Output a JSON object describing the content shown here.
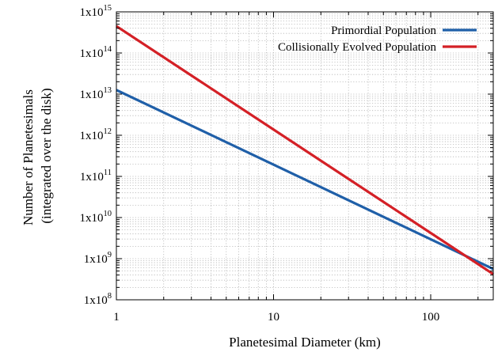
{
  "chart_data": {
    "type": "line",
    "xlabel": "Planetesimal Diameter (km)",
    "ylabel_lines": [
      "Number of Planetesimals",
      "(integrated over the disk)"
    ],
    "x_scale": "log",
    "y_scale": "log",
    "xlim": [
      1,
      250
    ],
    "ylim": [
      100000000,
      1000000000000000
    ],
    "x_ticks": [
      {
        "value": 1,
        "label": "1"
      },
      {
        "value": 10,
        "label": "10"
      },
      {
        "value": 100,
        "label": "100"
      }
    ],
    "y_ticks": [
      {
        "value": 100000000,
        "base": "1x10",
        "exp": "8"
      },
      {
        "value": 1000000000,
        "base": "1x10",
        "exp": "9"
      },
      {
        "value": 10000000000,
        "base": "1x10",
        "exp": "10"
      },
      {
        "value": 100000000000,
        "base": "1x10",
        "exp": "11"
      },
      {
        "value": 1000000000000,
        "base": "1x10",
        "exp": "12"
      },
      {
        "value": 10000000000000,
        "base": "1x10",
        "exp": "13"
      },
      {
        "value": 100000000000000,
        "base": "1x10",
        "exp": "14"
      },
      {
        "value": 1000000000000000,
        "base": "1x10",
        "exp": "15"
      }
    ],
    "grid": true,
    "legend_position": "top-right",
    "series": [
      {
        "name": "Primordial Population",
        "color": "#1f5fa8",
        "x": [
          1,
          250
        ],
        "y": [
          12600000000000,
          560000000
        ]
      },
      {
        "name": "Collisionally Evolved Population",
        "color": "#d42026",
        "x": [
          1,
          250
        ],
        "y": [
          450000000000000,
          420000000
        ]
      }
    ]
  }
}
